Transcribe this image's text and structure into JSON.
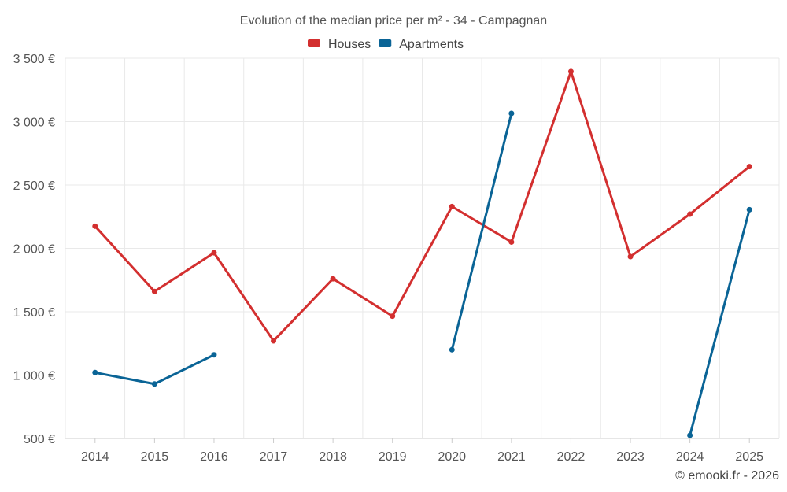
{
  "chart_data": {
    "type": "line",
    "title": "Evolution of the median price per m² - 34 - Campagnan",
    "categories": [
      "2014",
      "2015",
      "2016",
      "2017",
      "2018",
      "2019",
      "2020",
      "2021",
      "2022",
      "2023",
      "2024",
      "2025"
    ],
    "series": [
      {
        "name": "Houses",
        "color": "#d32f2f",
        "values": [
          2175,
          1660,
          1965,
          1270,
          1760,
          1465,
          2330,
          2050,
          3395,
          1935,
          2270,
          2645
        ]
      },
      {
        "name": "Apartments",
        "color": "#0a6496",
        "values": [
          1020,
          930,
          1160,
          null,
          null,
          null,
          1200,
          3065,
          null,
          null,
          525,
          2305
        ]
      }
    ],
    "y_ticks": [
      500,
      1000,
      1500,
      2000,
      2500,
      3000,
      3500
    ],
    "y_tick_labels": [
      "500 €",
      "1 000 €",
      "1 500 €",
      "2 000 €",
      "2 500 €",
      "3 000 €",
      "3 500 €"
    ],
    "ylim": [
      500,
      3500
    ],
    "xlabel": "",
    "ylabel": "",
    "legend_position": "top-center",
    "grid": true
  },
  "credit": "© emooki.fr - 2026"
}
